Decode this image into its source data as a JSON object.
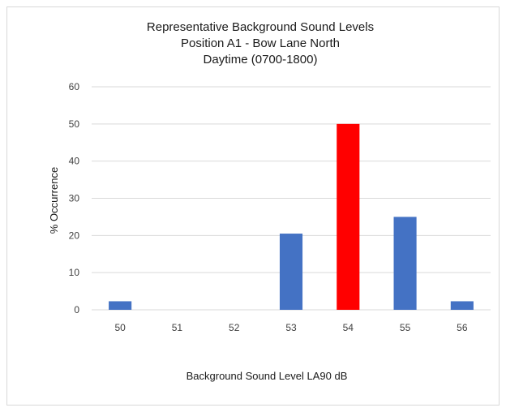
{
  "chart_data": {
    "type": "bar",
    "title_lines": [
      "Representative  Background Sound Levels",
      "Position A1 - Bow Lane North",
      "Daytime (0700-1800)"
    ],
    "xlabel": "Background Sound Level LA90 dB",
    "ylabel": "% Occurrence",
    "categories": [
      "50",
      "51",
      "52",
      "53",
      "54",
      "55",
      "56"
    ],
    "values": [
      2.3,
      0,
      0,
      20.5,
      50,
      25,
      2.3
    ],
    "ylim": [
      0,
      60
    ],
    "yticks": [
      "0",
      "10",
      "20",
      "30",
      "40",
      "50",
      "60"
    ],
    "grid": true,
    "legend": "none",
    "colors": {
      "default_bar": "#4472c4",
      "highlight_bar": "#ff0000",
      "highlight_category": "54"
    }
  }
}
